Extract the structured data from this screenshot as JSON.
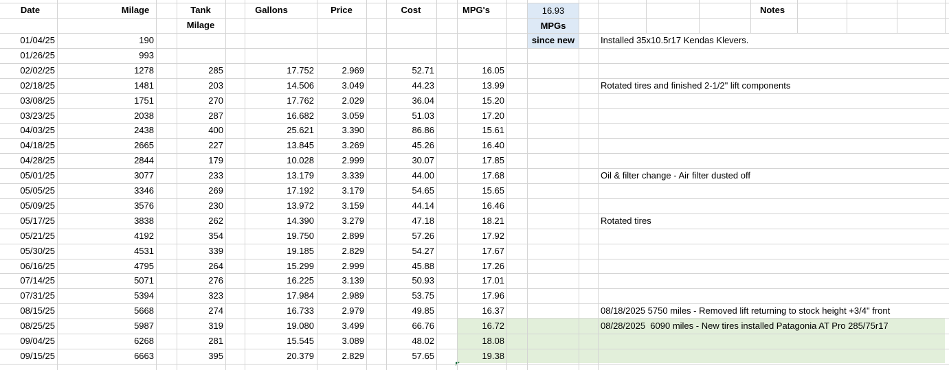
{
  "header": {
    "columns": [
      "Date",
      "Milage",
      "Tank",
      "Gallons",
      "Price",
      "Cost",
      "MPG's"
    ],
    "column_second_line": [
      null,
      null,
      "Milage",
      null,
      null,
      null,
      null
    ],
    "notes": "Notes"
  },
  "summary": [
    "16.93",
    "MPGs",
    "since new"
  ],
  "table": {
    "highlighted_rows": [
      19,
      20,
      21
    ],
    "rows": [
      [
        "01/04/25",
        "190",
        null,
        null,
        null,
        null,
        null,
        "Installed 35x10.5r17 Kendas Klevers."
      ],
      [
        "01/26/25",
        "993",
        null,
        null,
        null,
        null,
        null,
        null
      ],
      [
        "02/02/25",
        "1278",
        "285",
        "17.752",
        "2.969",
        "52.71",
        "16.05",
        null
      ],
      [
        "02/18/25",
        "1481",
        "203",
        "14.506",
        "3.049",
        "44.23",
        "13.99",
        "Rotated tires and finished 2-1/2\" lift components"
      ],
      [
        "03/08/25",
        "1751",
        "270",
        "17.762",
        "2.029",
        "36.04",
        "15.20",
        null
      ],
      [
        "03/23/25",
        "2038",
        "287",
        "16.682",
        "3.059",
        "51.03",
        "17.20",
        null
      ],
      [
        "04/03/25",
        "2438",
        "400",
        "25.621",
        "3.390",
        "86.86",
        "15.61",
        null
      ],
      [
        "04/18/25",
        "2665",
        "227",
        "13.845",
        "3.269",
        "45.26",
        "16.40",
        null
      ],
      [
        "04/28/25",
        "2844",
        "179",
        "10.028",
        "2.999",
        "30.07",
        "17.85",
        null
      ],
      [
        "05/01/25",
        "3077",
        "233",
        "13.179",
        "3.339",
        "44.00",
        "17.68",
        "Oil & filter change - Air filter dusted off"
      ],
      [
        "05/05/25",
        "3346",
        "269",
        "17.192",
        "3.179",
        "54.65",
        "15.65",
        null
      ],
      [
        "05/09/25",
        "3576",
        "230",
        "13.972",
        "3.159",
        "44.14",
        "16.46",
        null
      ],
      [
        "05/17/25",
        "3838",
        "262",
        "14.390",
        "3.279",
        "47.18",
        "18.21",
        "Rotated tires"
      ],
      [
        "05/21/25",
        "4192",
        "354",
        "19.750",
        "2.899",
        "57.26",
        "17.92",
        null
      ],
      [
        "05/30/25",
        "4531",
        "339",
        "19.185",
        "2.829",
        "54.27",
        "17.67",
        null
      ],
      [
        "06/16/25",
        "4795",
        "264",
        "15.299",
        "2.999",
        "45.88",
        "17.26",
        null
      ],
      [
        "07/14/25",
        "5071",
        "276",
        "16.225",
        "3.139",
        "50.93",
        "17.01",
        null
      ],
      [
        "07/31/25",
        "5394",
        "323",
        "17.984",
        "2.989",
        "53.75",
        "17.96",
        null
      ],
      [
        "08/15/25",
        "5668",
        "274",
        "16.733",
        "2.979",
        "49.85",
        "16.37",
        "08/18/2025 5750 miles - Removed lift returning to stock height +3/4\" front"
      ],
      [
        "08/25/25",
        "5987",
        "319",
        "19.080",
        "3.499",
        "66.76",
        "16.72",
        "08/28/2025  6090 miles - New tires installed Patagonia AT Pro 285/75r17"
      ],
      [
        "09/04/25",
        "6268",
        "281",
        "15.545",
        "3.089",
        "48.02",
        "18.08",
        null
      ],
      [
        "09/15/25",
        "6663",
        "395",
        "20.379",
        "2.829",
        "57.65",
        "19.38",
        null
      ]
    ]
  }
}
